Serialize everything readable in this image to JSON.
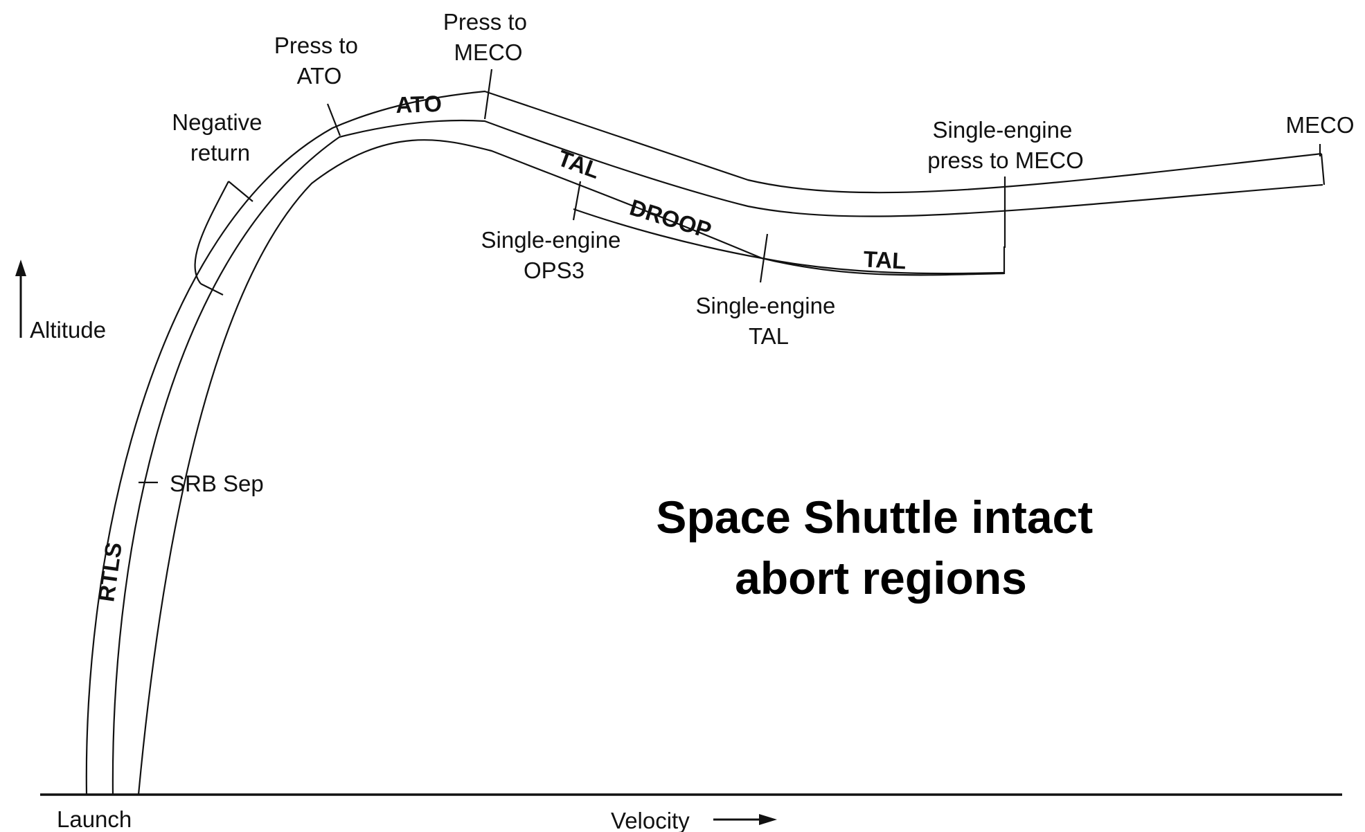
{
  "labels": {
    "press_to_ato": [
      "Press to",
      "ATO"
    ],
    "press_to_meco": [
      "Press to",
      "MECO"
    ],
    "negative_return": [
      "Negative",
      "return"
    ],
    "meco": "MECO",
    "single_engine_press_to_meco": [
      "Single-engine",
      "press to MECO"
    ],
    "single_engine_ops3": [
      "Single-engine",
      "OPS3"
    ],
    "single_engine_tal": [
      "Single-engine",
      "TAL"
    ],
    "srb_sep": "SRB Sep",
    "altitude": "Altitude",
    "launch": "Launch",
    "velocity": "Velocity"
  },
  "regions": {
    "ato": "ATO",
    "tal_upper": "TAL",
    "droop": "DROOP",
    "tal_lower": "TAL",
    "rtls": "RTLS"
  },
  "title": {
    "line1": "Space Shuttle intact",
    "line2": "abort regions"
  },
  "colors": {
    "ink": "#111111",
    "background": "#ffffff"
  }
}
